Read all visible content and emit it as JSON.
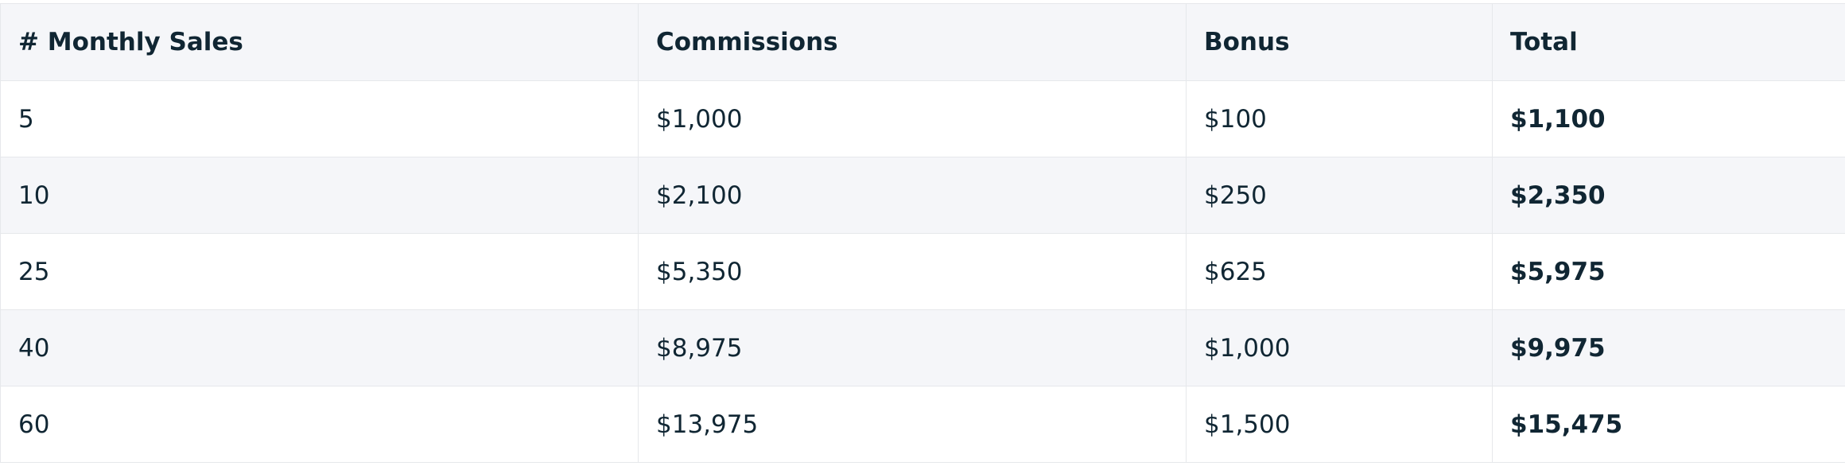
{
  "table": {
    "header": [
      "# Monthly Sales",
      "Commissions",
      "Bonus",
      "Total"
    ],
    "rows": [
      [
        "5",
        "$1,000",
        "$100",
        "$1,100"
      ],
      [
        "10",
        "$2,100",
        "$250",
        "$2,350"
      ],
      [
        "25",
        "$5,350",
        "$625",
        "$5,975"
      ],
      [
        "40",
        "$8,975",
        "$1,000",
        "$9,975"
      ],
      [
        "60",
        "$13,975",
        "$1,500",
        "$15,475"
      ]
    ]
  }
}
